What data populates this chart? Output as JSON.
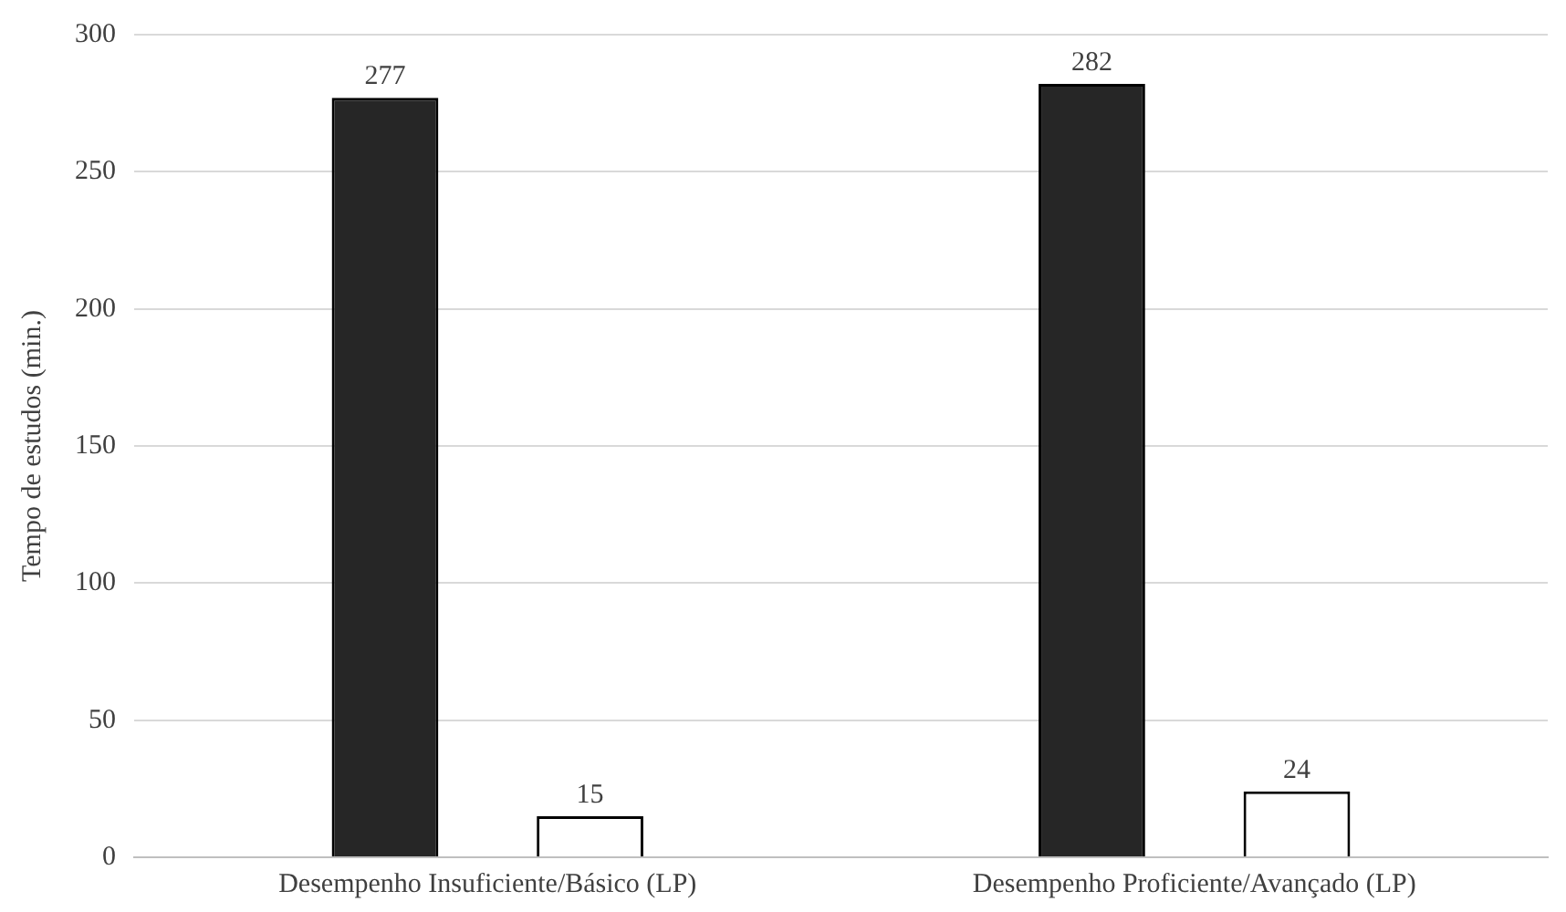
{
  "chart_data": {
    "type": "bar",
    "ylabel": "Tempo de estudos (min.)",
    "categories": [
      "Desempenho Insuficiente/Básico (LP)",
      "Desempenho Proficiente/Avançado (LP)"
    ],
    "series": [
      {
        "color": "#262626",
        "values": [
          277,
          282
        ]
      },
      {
        "color": "#ffffff",
        "values": [
          15,
          24
        ]
      }
    ],
    "ylim": [
      0,
      300
    ],
    "yticks": [
      0,
      50,
      100,
      150,
      200,
      250,
      300
    ],
    "grid": "y",
    "legend": false,
    "data_labels": true
  }
}
